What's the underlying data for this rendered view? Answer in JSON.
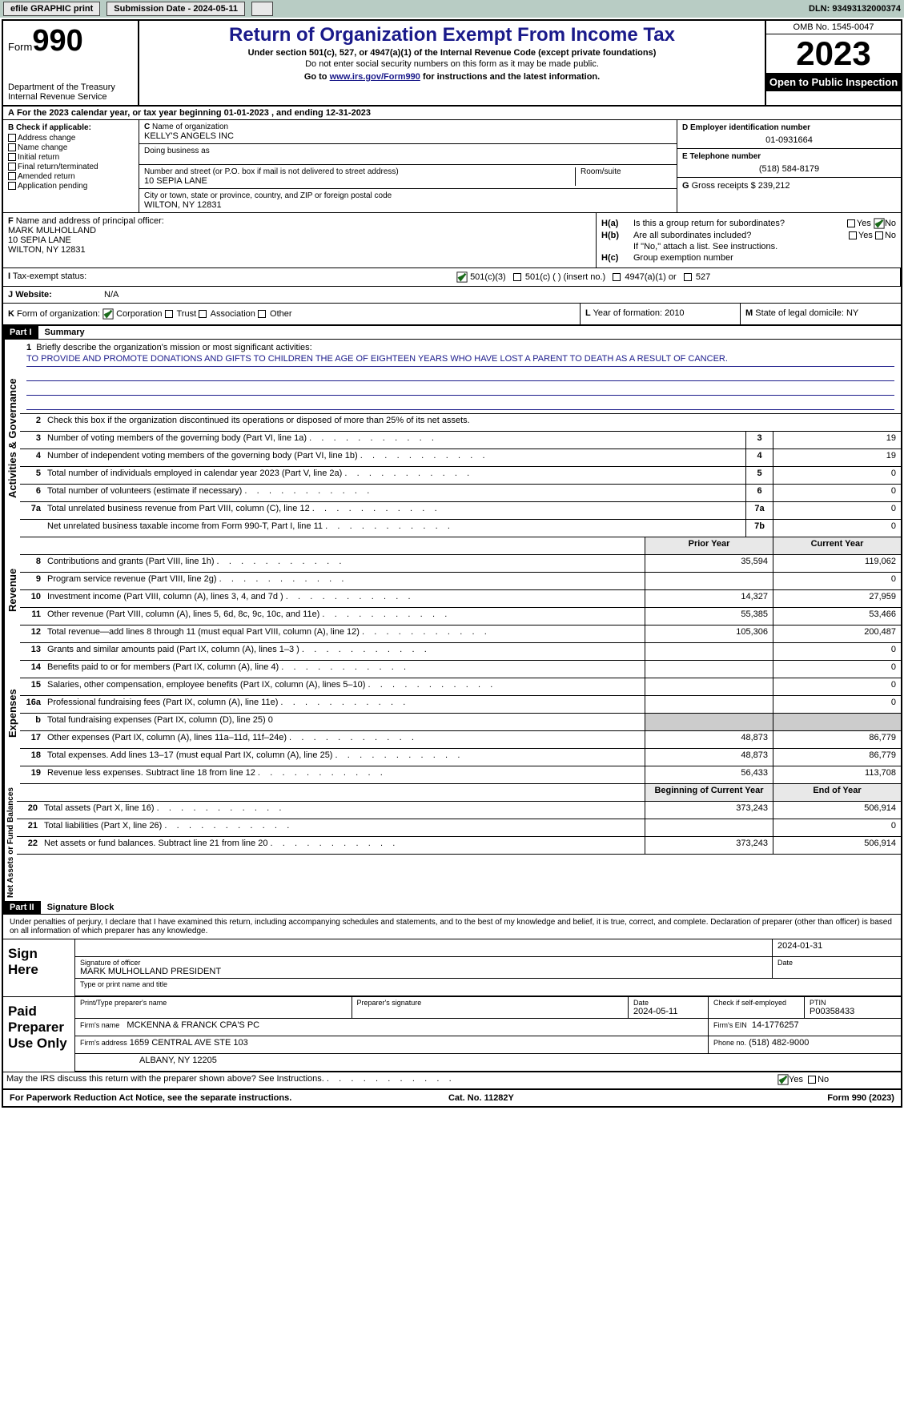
{
  "topbar": {
    "efile": "efile GRAPHIC print",
    "submission": "Submission Date - 2024-05-11",
    "dln": "DLN: 93493132000374"
  },
  "header": {
    "form_prefix": "Form",
    "form_num": "990",
    "dept": "Department of the Treasury\nInternal Revenue Service",
    "title": "Return of Organization Exempt From Income Tax",
    "sub": "Under section 501(c), 527, or 4947(a)(1) of the Internal Revenue Code (except private foundations)",
    "sub2": "Do not enter social security numbers on this form as it may be made public.",
    "goto_pre": "Go to ",
    "goto_link": "www.irs.gov/Form990",
    "goto_post": " for instructions and the latest information.",
    "omb": "OMB No. 1545-0047",
    "year": "2023",
    "open": "Open to Public Inspection"
  },
  "rowA": "For the 2023 calendar year, or tax year beginning 01-01-2023    , and ending 12-31-2023",
  "boxB": {
    "label": "Check if applicable:",
    "items": [
      "Address change",
      "Name change",
      "Initial return",
      "Final return/terminated",
      "Amended return",
      "Application pending"
    ]
  },
  "boxC": {
    "name_lbl": "Name of organization",
    "name": "KELLY'S ANGELS INC",
    "dba_lbl": "Doing business as",
    "street_lbl": "Number and street (or P.O. box if mail is not delivered to street address)",
    "room_lbl": "Room/suite",
    "street": "10 SEPIA LANE",
    "city_lbl": "City or town, state or province, country, and ZIP or foreign postal code",
    "city": "WILTON, NY  12831"
  },
  "boxD": {
    "lbl": "Employer identification number",
    "val": "01-0931664"
  },
  "boxE": {
    "lbl": "Telephone number",
    "val": "(518) 584-8179"
  },
  "boxG": {
    "lbl": "Gross receipts $",
    "val": "239,212"
  },
  "boxF": {
    "lbl": "Name and address of principal officer:",
    "name": "MARK MULHOLLAND",
    "addr1": "10 SEPIA LANE",
    "addr2": "WILTON, NY  12831"
  },
  "boxH": {
    "a_lbl": "H(a)",
    "a_q": "Is this a group return for subordinates?",
    "b_lbl": "H(b)",
    "b_q": "Are all subordinates included?",
    "b_note": "If \"No,\" attach a list. See instructions.",
    "c_lbl": "H(c)",
    "c_q": "Group exemption number",
    "yes": "Yes",
    "no": "No"
  },
  "rowI": {
    "lbl": "Tax-exempt status:",
    "opt1": "501(c)(3)",
    "opt2": "501(c) (   ) (insert no.)",
    "opt3": "4947(a)(1) or",
    "opt4": "527"
  },
  "rowJ": {
    "lbl": "Website:",
    "val": "N/A"
  },
  "rowK": {
    "lbl": "Form of organization:",
    "opts": [
      "Corporation",
      "Trust",
      "Association",
      "Other"
    ]
  },
  "rowL": {
    "lbl": "Year of formation:",
    "val": "2010"
  },
  "rowM": {
    "lbl": "State of legal domicile:",
    "val": "NY"
  },
  "part1": {
    "hdr": "Part I",
    "title": "Summary",
    "tabs": {
      "ag": "Activities & Governance",
      "rev": "Revenue",
      "exp": "Expenses",
      "net": "Net Assets or Fund Balances"
    },
    "line1_lbl": "Briefly describe the organization's mission or most significant activities:",
    "line1_txt": "TO PROVIDE AND PROMOTE DONATIONS AND GIFTS TO CHILDREN THE AGE OF EIGHTEEN YEARS WHO HAVE LOST A PARENT TO DEATH AS A RESULT OF CANCER.",
    "line2": "Check this box        if the organization discontinued its operations or disposed of more than 25% of its net assets.",
    "lines_ag": [
      {
        "n": "3",
        "t": "Number of voting members of the governing body (Part VI, line 1a)",
        "b": "3",
        "v": "19"
      },
      {
        "n": "4",
        "t": "Number of independent voting members of the governing body (Part VI, line 1b)",
        "b": "4",
        "v": "19"
      },
      {
        "n": "5",
        "t": "Total number of individuals employed in calendar year 2023 (Part V, line 2a)",
        "b": "5",
        "v": "0"
      },
      {
        "n": "6",
        "t": "Total number of volunteers (estimate if necessary)",
        "b": "6",
        "v": "0"
      },
      {
        "n": "7a",
        "t": "Total unrelated business revenue from Part VIII, column (C), line 12",
        "b": "7a",
        "v": "0"
      },
      {
        "n": "",
        "t": "Net unrelated business taxable income from Form 990-T, Part I, line 11",
        "b": "7b",
        "v": "0"
      }
    ],
    "col_hdr": {
      "prior": "Prior Year",
      "current": "Current Year"
    },
    "lines_rev": [
      {
        "n": "8",
        "t": "Contributions and grants (Part VIII, line 1h)",
        "p": "35,594",
        "c": "119,062"
      },
      {
        "n": "9",
        "t": "Program service revenue (Part VIII, line 2g)",
        "p": "",
        "c": "0"
      },
      {
        "n": "10",
        "t": "Investment income (Part VIII, column (A), lines 3, 4, and 7d )",
        "p": "14,327",
        "c": "27,959"
      },
      {
        "n": "11",
        "t": "Other revenue (Part VIII, column (A), lines 5, 6d, 8c, 9c, 10c, and 11e)",
        "p": "55,385",
        "c": "53,466"
      },
      {
        "n": "12",
        "t": "Total revenue—add lines 8 through 11 (must equal Part VIII, column (A), line 12)",
        "p": "105,306",
        "c": "200,487"
      }
    ],
    "lines_exp": [
      {
        "n": "13",
        "t": "Grants and similar amounts paid (Part IX, column (A), lines 1–3 )",
        "p": "",
        "c": "0"
      },
      {
        "n": "14",
        "t": "Benefits paid to or for members (Part IX, column (A), line 4)",
        "p": "",
        "c": "0"
      },
      {
        "n": "15",
        "t": "Salaries, other compensation, employee benefits (Part IX, column (A), lines 5–10)",
        "p": "",
        "c": "0"
      },
      {
        "n": "16a",
        "t": "Professional fundraising fees (Part IX, column (A), line 11e)",
        "p": "",
        "c": "0"
      },
      {
        "n": "b",
        "t": "Total fundraising expenses (Part IX, column (D), line 25) 0",
        "shade": true
      },
      {
        "n": "17",
        "t": "Other expenses (Part IX, column (A), lines 11a–11d, 11f–24e)",
        "p": "48,873",
        "c": "86,779"
      },
      {
        "n": "18",
        "t": "Total expenses. Add lines 13–17 (must equal Part IX, column (A), line 25)",
        "p": "48,873",
        "c": "86,779"
      },
      {
        "n": "19",
        "t": "Revenue less expenses. Subtract line 18 from line 12",
        "p": "56,433",
        "c": "113,708"
      }
    ],
    "col_hdr2": {
      "beg": "Beginning of Current Year",
      "end": "End of Year"
    },
    "lines_net": [
      {
        "n": "20",
        "t": "Total assets (Part X, line 16)",
        "p": "373,243",
        "c": "506,914"
      },
      {
        "n": "21",
        "t": "Total liabilities (Part X, line 26)",
        "p": "",
        "c": "0"
      },
      {
        "n": "22",
        "t": "Net assets or fund balances. Subtract line 21 from line 20",
        "p": "373,243",
        "c": "506,914"
      }
    ]
  },
  "part2": {
    "hdr": "Part II",
    "title": "Signature Block",
    "decl": "Under penalties of perjury, I declare that I have examined this return, including accompanying schedules and statements, and to the best of my knowledge and belief, it is true, correct, and complete. Declaration of preparer (other than officer) is based on all information of which preparer has any knowledge.",
    "sign_here": "Sign Here",
    "sig_officer_lbl": "Signature of officer",
    "sig_officer": "MARK MULHOLLAND PRESIDENT",
    "sig_type_lbl": "Type or print name and title",
    "date_lbl": "Date",
    "date1": "2024-01-31",
    "paid": "Paid Preparer Use Only",
    "prep_name_lbl": "Print/Type preparer's name",
    "prep_sig_lbl": "Preparer's signature",
    "prep_date": "2024-05-11",
    "self_emp": "Check        if self-employed",
    "ptin_lbl": "PTIN",
    "ptin": "P00358433",
    "firm_name_lbl": "Firm's name",
    "firm_name": "MCKENNA & FRANCK CPA'S PC",
    "firm_ein_lbl": "Firm's EIN",
    "firm_ein": "14-1776257",
    "firm_addr_lbl": "Firm's address",
    "firm_addr1": "1659 CENTRAL AVE STE 103",
    "firm_addr2": "ALBANY, NY  12205",
    "phone_lbl": "Phone no.",
    "phone": "(518) 482-9000",
    "discuss": "May the IRS discuss this return with the preparer shown above? See Instructions.",
    "yes": "Yes",
    "no": "No"
  },
  "footer": {
    "left": "For Paperwork Reduction Act Notice, see the separate instructions.",
    "mid": "Cat. No. 11282Y",
    "right": "Form 990 (2023)"
  }
}
